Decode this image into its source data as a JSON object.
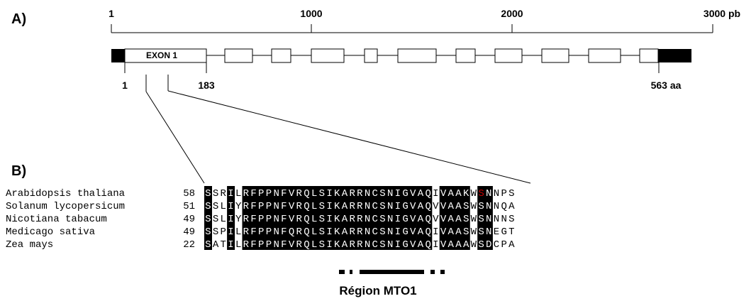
{
  "panel_a_label": "A)",
  "panel_b_label": "B)",
  "scale": {
    "ticks": [
      {
        "value": 1,
        "label": "1"
      },
      {
        "value": 1000,
        "label": "1000"
      },
      {
        "value": 2000,
        "label": "2000"
      },
      {
        "value": 3000,
        "label": "3000 pb"
      }
    ]
  },
  "gene": {
    "exon1_label": "EXON 1",
    "protein_ticks": [
      {
        "label": "1"
      },
      {
        "label": "183"
      },
      {
        "label": "563 aa"
      }
    ]
  },
  "alignment": {
    "rows": [
      {
        "species": "Arabidopsis thaliana",
        "start": "58",
        "seq": "SSRILRFPPNFVRQLSIKARRNCSNIGVAQIVAAKWSNNPS"
      },
      {
        "species": "Solanum lycopersicum",
        "start": "51",
        "seq": "SSLIYRFPPNFVRQLSIKARRNCSNIGVAQVVAASWSNNQA"
      },
      {
        "species": "Nicotiana tabacum",
        "start": "49",
        "seq": "SSLIYRFPPNFVRQLSIKARRNCSNIGVAQVVAASWSNNNS"
      },
      {
        "species": "Medicago sativa",
        "start": "49",
        "seq": "SSPILRFPPNFQRQLSIKARRNCSNIGVAQIVAASWSNEGT"
      },
      {
        "species": "Zea mays",
        "start": "22",
        "seq": "SATILRFPPNFVRQLSIKARRNCSNIGVAQIVAAAWSDCPA"
      }
    ],
    "conserved_columns": [
      0,
      3,
      5,
      6,
      7,
      8,
      9,
      10,
      11,
      12,
      13,
      14,
      15,
      16,
      17,
      18,
      19,
      20,
      21,
      22,
      23,
      24,
      25,
      26,
      27,
      28,
      29,
      31,
      32,
      33,
      34,
      36,
      37
    ],
    "highlight_red": {
      "row": 0,
      "col": 36
    },
    "colors": {
      "conserved_bg": "#000000",
      "conserved_fg": "#ffffff",
      "highlight": "#c00000"
    }
  },
  "region_label": "Région MTO1"
}
